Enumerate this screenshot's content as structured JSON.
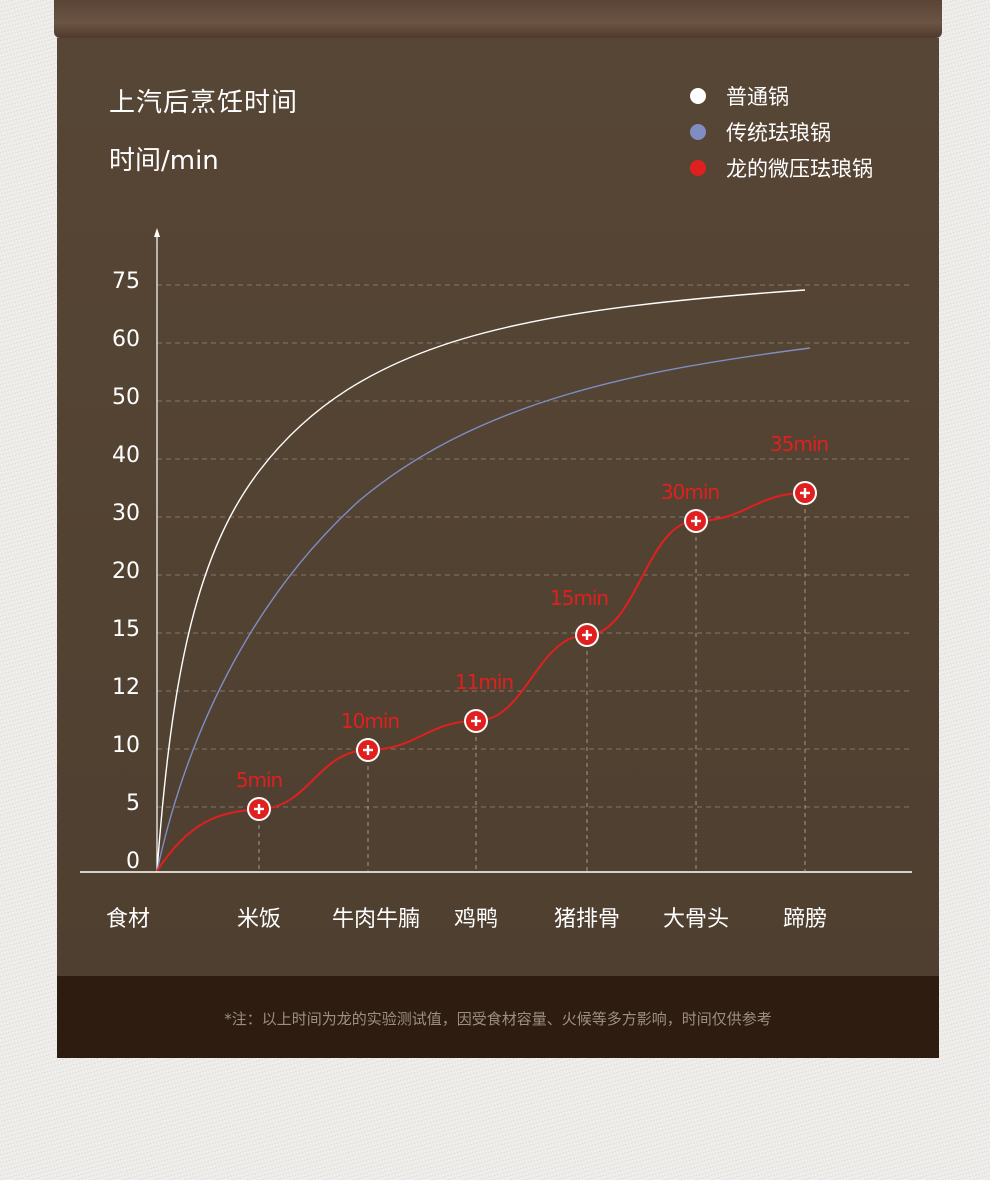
{
  "header": {
    "title": "上汽后烹饪时间",
    "unit": "时间/min"
  },
  "legend": [
    {
      "label": "普通锅",
      "color": "#ffffff"
    },
    {
      "label": "传统珐琅锅",
      "color": "#7f8dc2"
    },
    {
      "label": "龙的微压珐琅锅",
      "color": "#e0201f"
    }
  ],
  "footer": {
    "note": "*注：以上时间为龙的实验测试值，因受食材容量、火候等多方影响，时间仅供参考"
  },
  "chart_data": {
    "type": "line",
    "xlabel": "食材",
    "ylabel": "时间/min",
    "categories": [
      "米饭",
      "牛肉牛腩",
      "鸡鸭",
      "猪排骨",
      "大骨头",
      "蹄膀"
    ],
    "y_tick_labels": [
      "0",
      "5",
      "10",
      "12",
      "15",
      "20",
      "30",
      "40",
      "50",
      "60",
      "75"
    ],
    "grid": "horizontal dashed",
    "series": [
      {
        "name": "普通锅",
        "color": "#ffffff",
        "values": [
          null,
          null,
          null,
          null,
          null,
          75
        ],
        "note_curve": "smooth curve from origin"
      },
      {
        "name": "传统珐琅锅",
        "color": "#7f8dc2",
        "values": [
          null,
          null,
          null,
          null,
          null,
          60
        ]
      },
      {
        "name": "龙的微压珐琅锅",
        "color": "#e0201f",
        "values": [
          5,
          10,
          11,
          15,
          30,
          35
        ],
        "data_labels": [
          "5min",
          "10min",
          "11min",
          "15min",
          "30min",
          "35min"
        ]
      }
    ]
  }
}
